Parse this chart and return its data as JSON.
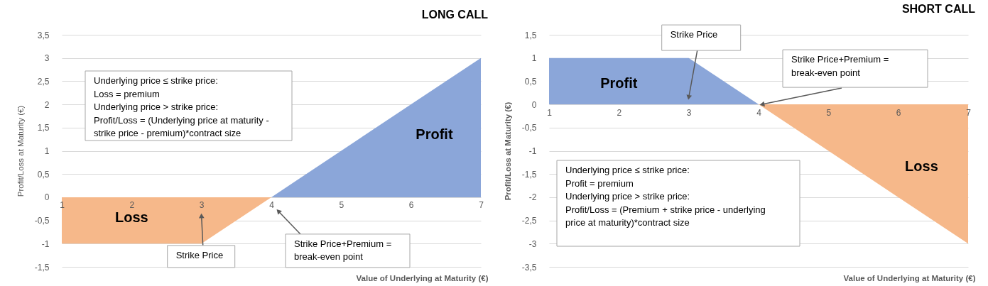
{
  "chart_data": [
    {
      "type": "area",
      "title": "LONG CALL",
      "xlabel": "Value of Underlying at Maturity (€)",
      "ylabel": "Profit/Loss at Maturity (€)",
      "series": [
        {
          "name": "Loss",
          "color": "#f6b88a",
          "x": [
            1,
            2,
            3,
            4
          ],
          "values": [
            -1,
            -1,
            -1,
            0
          ]
        },
        {
          "name": "Profit",
          "color": "#8ba6d9",
          "x": [
            4,
            5,
            6,
            7
          ],
          "values": [
            0,
            1,
            2,
            3
          ]
        }
      ],
      "xlim": [
        1,
        7
      ],
      "xticks": [
        1,
        2,
        3,
        4,
        5,
        6,
        7
      ],
      "ylim": [
        -1.5,
        3.5
      ],
      "yticks": [
        {
          "value": -1.5,
          "label": "-1,5"
        },
        -1,
        {
          "value": -0.5,
          "label": "-0,5"
        },
        0,
        {
          "value": 0.5,
          "label": "0,5"
        },
        1,
        {
          "value": 1.5,
          "label": "1,5"
        },
        2,
        {
          "value": 2.5,
          "label": "2,5"
        },
        3,
        {
          "value": 3.5,
          "label": "3,5"
        }
      ],
      "grid": "y",
      "annotations": [
        "Underlying price ≤ strike price:\nLoss = premium\nUnderlying price > strike price:\nProfit/Loss = (Underlying price at maturity -\nstrike price - premium)*contract size",
        {
          "text": "Strike Price",
          "x": 3,
          "y": -0.4
        },
        {
          "text": "Strike Price+Premium =\nbreak-even point",
          "x": 4.1,
          "y": -0.3
        }
      ]
    },
    {
      "type": "area",
      "title": "SHORT CALL",
      "xlabel": "Value of Underlying at Maturity (€)",
      "ylabel": "Profit/Loss at Maturity (€)",
      "series": [
        {
          "name": "Profit",
          "color": "#8ba6d9",
          "x": [
            1,
            2,
            3,
            4
          ],
          "values": [
            1,
            1,
            1,
            0
          ]
        },
        {
          "name": "Loss",
          "color": "#f6b88a",
          "x": [
            4,
            5,
            6,
            7
          ],
          "values": [
            0,
            -1,
            -2,
            -3
          ]
        }
      ],
      "xlim": [
        1,
        7
      ],
      "xticks": [
        1,
        2,
        3,
        4,
        5,
        6,
        7
      ],
      "ylim": [
        -3.5,
        1.5
      ],
      "yticks": [
        {
          "value": -3.5,
          "label": "-3,5"
        },
        -3,
        {
          "value": -2.5,
          "label": "-2,5"
        },
        -2,
        {
          "value": -1.5,
          "label": "-1,5"
        },
        -1,
        {
          "value": -0.5,
          "label": "-0,5"
        },
        0,
        {
          "value": 0.5,
          "label": "0,5"
        },
        1,
        {
          "value": 1.5,
          "label": "1,5"
        }
      ],
      "grid": "y",
      "annotations": [
        "Underlying price ≤ strike price:\nProfit = premium\nUnderlying price > strike price:\nProfit/Loss = (Premium + strike price - underlying\nprice at maturity)*contract size",
        {
          "text": "Strike Price",
          "x": 3,
          "y": 0.15
        },
        {
          "text": "Strike Price+Premium =\nbreak-even point",
          "x": 4.05,
          "y": 0
        }
      ]
    }
  ]
}
